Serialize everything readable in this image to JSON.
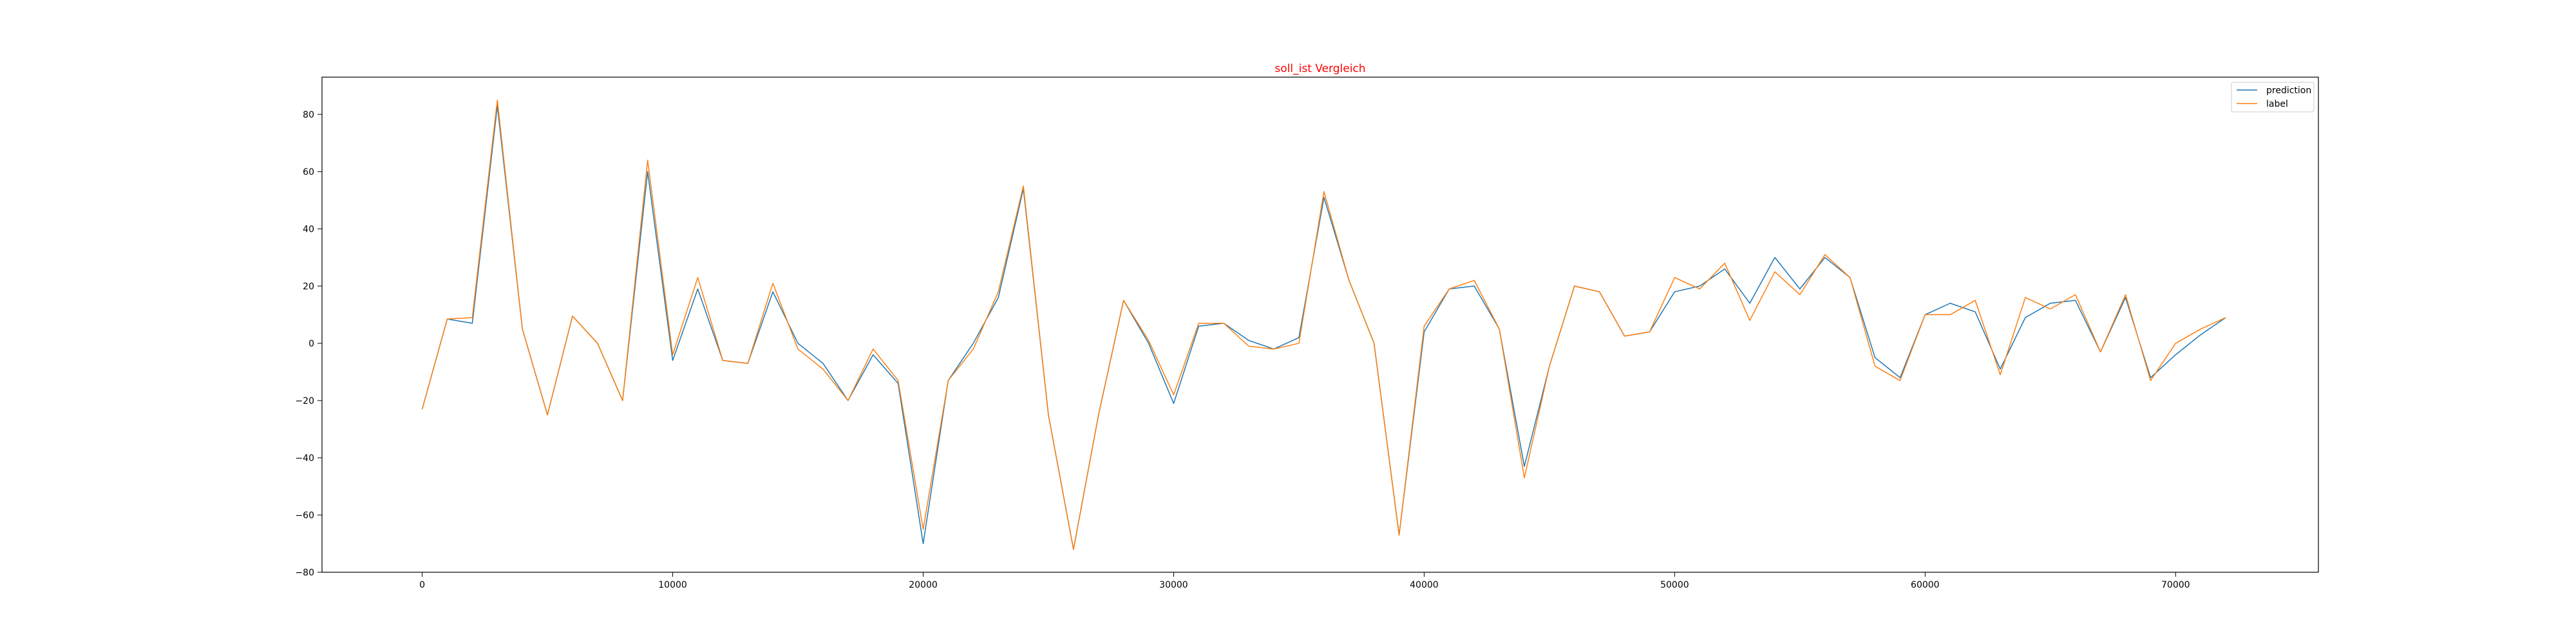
{
  "chart_data": {
    "type": "line",
    "title": "soll_ist Vergleich",
    "title_color": "#ff0000",
    "xlabel": "",
    "ylabel": "",
    "xlim": [
      -4000,
      75700
    ],
    "ylim": [
      -80,
      93
    ],
    "x_ticks": [
      0,
      10000,
      20000,
      30000,
      40000,
      50000,
      60000,
      70000
    ],
    "y_ticks": [
      -80,
      -60,
      -40,
      -20,
      0,
      20,
      40,
      60,
      80
    ],
    "grid": false,
    "legend_position": "upper right",
    "x": [
      0,
      1000,
      2000,
      3000,
      4000,
      5000,
      6000,
      7000,
      8000,
      9000,
      10000,
      11000,
      12000,
      13000,
      14000,
      15000,
      16000,
      17000,
      18000,
      19000,
      20000,
      21000,
      22000,
      23000,
      24000,
      25000,
      26000,
      27000,
      28000,
      29000,
      30000,
      31000,
      32000,
      33000,
      34000,
      35000,
      36000,
      37000,
      38000,
      39000,
      40000,
      41000,
      42000,
      43000,
      44000,
      45000,
      46000,
      47000,
      48000,
      49000,
      50000,
      51000,
      52000,
      53000,
      54000,
      55000,
      56000,
      57000,
      58000,
      59000,
      60000,
      61000,
      62000,
      63000,
      64000,
      65000,
      66000,
      67000,
      68000,
      69000,
      70000,
      71000,
      72000
    ],
    "series": [
      {
        "name": "prediction",
        "color": "#1f77b4",
        "values": [
          -23,
          8.5,
          7,
          83,
          5,
          -25,
          9.5,
          0,
          -20,
          60,
          -6,
          19,
          -6,
          -7,
          18,
          0,
          -7,
          -20,
          -4,
          -14,
          -70,
          -13,
          0,
          16,
          54,
          -25,
          -72,
          -25,
          15,
          0,
          -21,
          6,
          7,
          1,
          -2,
          2,
          51,
          22,
          0,
          -67,
          4,
          19,
          20,
          5,
          -43,
          -8,
          20,
          18,
          2.5,
          4,
          18,
          20,
          26,
          14,
          30,
          19,
          30,
          23,
          -5,
          -12,
          10,
          14,
          11,
          -9,
          9,
          14,
          15,
          -3,
          16,
          -12,
          -4,
          3,
          9
        ],
        "markers": false
      },
      {
        "name": "label",
        "color": "#ff7f0e",
        "values": [
          -23,
          8.5,
          9,
          85,
          5,
          -25,
          9.5,
          0,
          -20,
          64,
          -4,
          23,
          -6,
          -7,
          21,
          -2,
          -9,
          -20,
          -2,
          -13,
          -65,
          -13,
          -2,
          18,
          55,
          -25,
          -72,
          -25,
          15,
          1,
          -18,
          7,
          7,
          -1,
          -2,
          0,
          53,
          22,
          0,
          -67,
          6,
          19,
          22,
          5,
          -47,
          -8,
          20,
          18,
          2.5,
          4,
          23,
          19,
          28,
          8,
          25,
          17,
          31,
          23,
          -8,
          -13,
          10,
          10,
          15,
          -11,
          16,
          12,
          17,
          -3,
          17,
          -13,
          0,
          5,
          9
        ],
        "markers": false
      }
    ]
  }
}
